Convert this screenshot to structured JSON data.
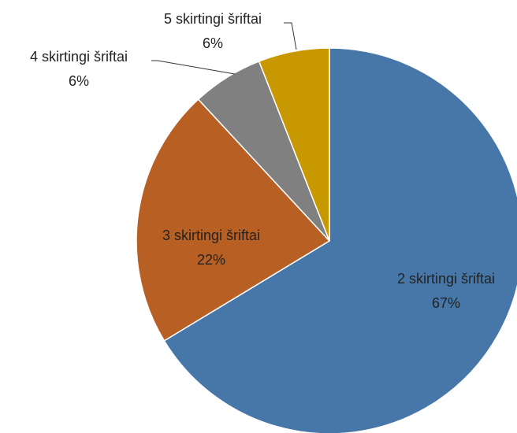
{
  "chart_data": {
    "type": "pie",
    "categories": [
      "2 skirtingi šriftai",
      "3 skirtingi šriftai",
      "4 skirtingi šriftai",
      "5 skirtingi šriftai"
    ],
    "values": [
      67,
      22,
      6,
      6
    ],
    "value_labels": [
      "67%",
      "22%",
      "6%",
      "6%"
    ],
    "colors": [
      "#4677a8",
      "#b85f24",
      "#808080",
      "#c89800"
    ]
  }
}
